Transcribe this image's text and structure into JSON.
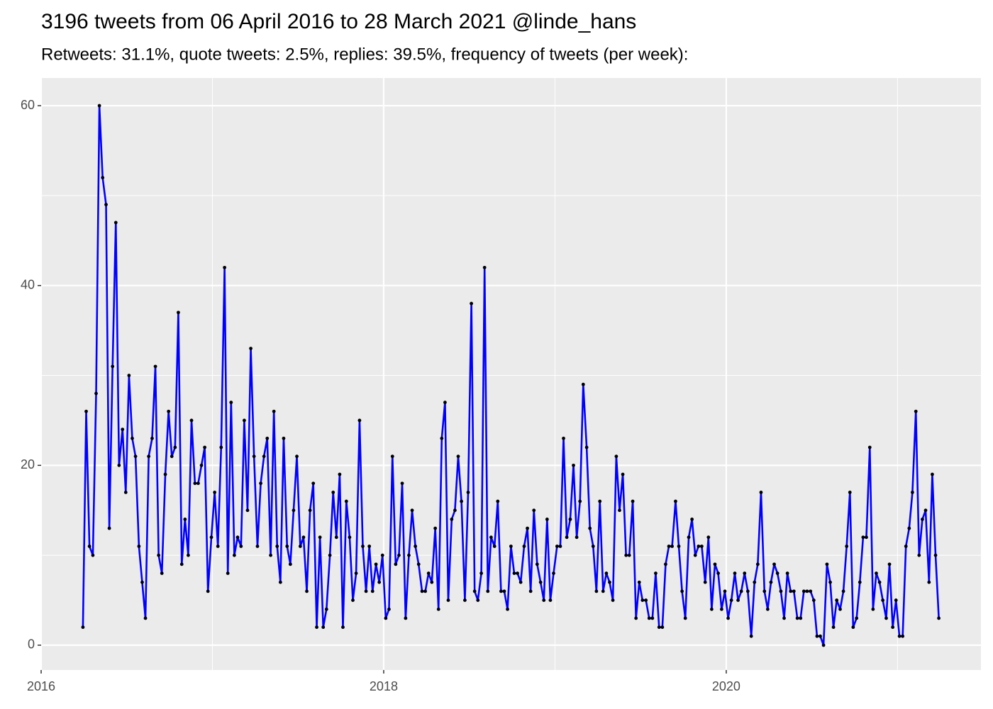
{
  "chart_data": {
    "type": "line",
    "title": "3196 tweets from 06 April 2016 to 28 March 2021 @linde_hans",
    "subtitle": "Retweets: 31.1%, quote tweets: 2.5%, replies: 39.5%, frequency of tweets (per week):",
    "x": [
      2016.244,
      2016.263,
      2016.282,
      2016.302,
      2016.321,
      2016.34,
      2016.359,
      2016.379,
      2016.398,
      2016.417,
      2016.436,
      2016.455,
      2016.475,
      2016.494,
      2016.513,
      2016.532,
      2016.551,
      2016.571,
      2016.59,
      2016.609,
      2016.628,
      2016.648,
      2016.667,
      2016.686,
      2016.705,
      2016.725,
      2016.744,
      2016.763,
      2016.782,
      2016.801,
      2016.821,
      2016.84,
      2016.859,
      2016.878,
      2016.898,
      2016.917,
      2016.936,
      2016.955,
      2016.974,
      2016.994,
      2017.013,
      2017.032,
      2017.051,
      2017.071,
      2017.09,
      2017.109,
      2017.128,
      2017.147,
      2017.167,
      2017.186,
      2017.205,
      2017.224,
      2017.243,
      2017.263,
      2017.282,
      2017.301,
      2017.32,
      2017.34,
      2017.359,
      2017.378,
      2017.397,
      2017.416,
      2017.436,
      2017.455,
      2017.474,
      2017.493,
      2017.513,
      2017.532,
      2017.551,
      2017.57,
      2017.589,
      2017.609,
      2017.628,
      2017.647,
      2017.666,
      2017.686,
      2017.705,
      2017.724,
      2017.743,
      2017.762,
      2017.782,
      2017.801,
      2017.82,
      2017.839,
      2017.859,
      2017.878,
      2017.897,
      2017.916,
      2017.935,
      2017.955,
      2017.974,
      2017.993,
      2018.012,
      2018.031,
      2018.051,
      2018.07,
      2018.089,
      2018.108,
      2018.128,
      2018.147,
      2018.166,
      2018.185,
      2018.204,
      2018.224,
      2018.243,
      2018.262,
      2018.281,
      2018.301,
      2018.32,
      2018.339,
      2018.358,
      2018.377,
      2018.397,
      2018.416,
      2018.435,
      2018.454,
      2018.474,
      2018.493,
      2018.512,
      2018.531,
      2018.55,
      2018.57,
      2018.589,
      2018.608,
      2018.627,
      2018.647,
      2018.666,
      2018.685,
      2018.704,
      2018.723,
      2018.743,
      2018.762,
      2018.781,
      2018.8,
      2018.82,
      2018.839,
      2018.858,
      2018.877,
      2018.896,
      2018.916,
      2018.935,
      2018.954,
      2018.973,
      2018.992,
      2019.012,
      2019.031,
      2019.05,
      2019.069,
      2019.089,
      2019.108,
      2019.127,
      2019.146,
      2019.165,
      2019.185,
      2019.204,
      2019.223,
      2019.242,
      2019.262,
      2019.281,
      2019.3,
      2019.319,
      2019.338,
      2019.358,
      2019.377,
      2019.396,
      2019.415,
      2019.434,
      2019.454,
      2019.473,
      2019.492,
      2019.511,
      2019.531,
      2019.55,
      2019.569,
      2019.588,
      2019.608,
      2019.627,
      2019.646,
      2019.665,
      2019.684,
      2019.704,
      2019.723,
      2019.742,
      2019.761,
      2019.781,
      2019.8,
      2019.819,
      2019.838,
      2019.857,
      2019.877,
      2019.896,
      2019.915,
      2019.934,
      2019.953,
      2019.973,
      2019.992,
      2020.011,
      2020.03,
      2020.05,
      2020.069,
      2020.088,
      2020.107,
      2020.126,
      2020.146,
      2020.165,
      2020.184,
      2020.203,
      2020.223,
      2020.242,
      2020.261,
      2020.28,
      2020.299,
      2020.319,
      2020.338,
      2020.357,
      2020.376,
      2020.395,
      2020.415,
      2020.434,
      2020.453,
      2020.472,
      2020.492,
      2020.511,
      2020.53,
      2020.549,
      2020.568,
      2020.588,
      2020.607,
      2020.626,
      2020.645,
      2020.665,
      2020.684,
      2020.703,
      2020.722,
      2020.741,
      2020.761,
      2020.78,
      2020.799,
      2020.818,
      2020.838,
      2020.857,
      2020.876,
      2020.895,
      2020.914,
      2020.934,
      2020.953,
      2020.972,
      2020.991,
      2021.011,
      2021.03,
      2021.049,
      2021.068,
      2021.087,
      2021.107,
      2021.126,
      2021.145,
      2021.164,
      2021.184,
      2021.203,
      2021.222,
      2021.241
    ],
    "series": [
      {
        "color": "#0000ff",
        "point_color": "#000000",
        "values": [
          2,
          26,
          11,
          10,
          28,
          60,
          52,
          49,
          13,
          31,
          47,
          20,
          24,
          17,
          30,
          23,
          21,
          11,
          7,
          3,
          21,
          23,
          31,
          10,
          8,
          19,
          26,
          21,
          22,
          37,
          9,
          14,
          10,
          25,
          18,
          18,
          20,
          22,
          6,
          12,
          17,
          11,
          22,
          42,
          8,
          27,
          10,
          12,
          11,
          25,
          15,
          33,
          21,
          11,
          18,
          21,
          23,
          10,
          26,
          11,
          7,
          23,
          11,
          9,
          15,
          21,
          11,
          12,
          6,
          15,
          18,
          2,
          12,
          2,
          4,
          10,
          17,
          12,
          19,
          2,
          16,
          12,
          5,
          8,
          25,
          11,
          6,
          11,
          6,
          9,
          7,
          10,
          3,
          4,
          21,
          9,
          10,
          18,
          3,
          10,
          15,
          11,
          9,
          6,
          6,
          8,
          7,
          13,
          4,
          23,
          27,
          5,
          14,
          15,
          21,
          16,
          5,
          17,
          38,
          6,
          5,
          8,
          42,
          6,
          12,
          11,
          16,
          6,
          6,
          4,
          11,
          8,
          8,
          7,
          11,
          13,
          6,
          15,
          9,
          7,
          5,
          14,
          5,
          8,
          11,
          11,
          23,
          12,
          14,
          20,
          12,
          16,
          29,
          22,
          13,
          11,
          6,
          16,
          6,
          8,
          7,
          5,
          21,
          15,
          19,
          10,
          10,
          16,
          3,
          7,
          5,
          5,
          3,
          3,
          8,
          2,
          2,
          9,
          11,
          11,
          16,
          11,
          6,
          3,
          12,
          14,
          10,
          11,
          11,
          7,
          12,
          4,
          9,
          8,
          4,
          6,
          3,
          5,
          8,
          5,
          6,
          8,
          6,
          1,
          7,
          9,
          17,
          6,
          4,
          7,
          9,
          8,
          6,
          3,
          8,
          6,
          6,
          3,
          3,
          6,
          6,
          6,
          5,
          1,
          1,
          0,
          9,
          7,
          2,
          5,
          4,
          6,
          11,
          17,
          2,
          3,
          7,
          12,
          12,
          22,
          4,
          8,
          7,
          5,
          3,
          9,
          2,
          5,
          1,
          1,
          11,
          13,
          17,
          26,
          10,
          14,
          15,
          7,
          19,
          10,
          3
        ]
      }
    ],
    "xlim": [
      2016,
      2021.487
    ],
    "xticks": [
      2016,
      2018,
      2020
    ],
    "x_minor_ticks": [
      2017,
      2019,
      2021
    ],
    "ylim": [
      -2.76,
      63.08
    ],
    "yticks": [
      0,
      20,
      40,
      60
    ],
    "y_minor_ticks": [
      10,
      30,
      50
    ],
    "grid": true
  }
}
